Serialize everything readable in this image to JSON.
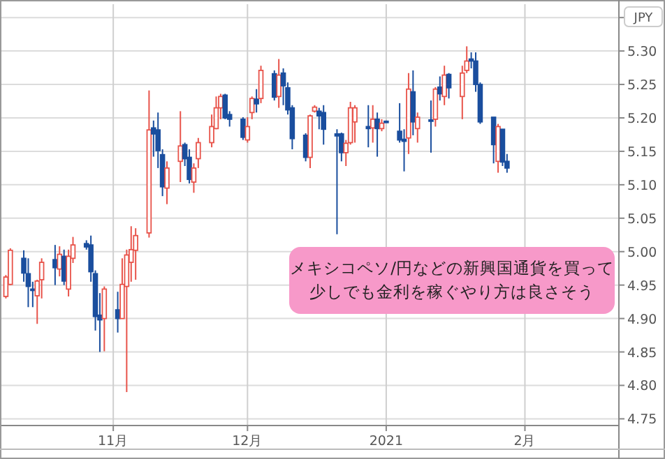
{
  "chart_data": {
    "type": "candlestick",
    "ylabel": "JPY",
    "x": [
      "2020-10-08",
      "2020-10-09",
      "2020-10-12",
      "2020-10-13",
      "2020-10-14",
      "2020-10-15",
      "2020-10-16",
      "2020-10-19",
      "2020-10-20",
      "2020-10-21",
      "2020-10-22",
      "2020-10-23",
      "2020-10-26",
      "2020-10-27",
      "2020-10-28",
      "2020-10-29",
      "2020-10-30",
      "2020-11-02",
      "2020-11-03",
      "2020-11-04",
      "2020-11-05",
      "2020-11-06",
      "2020-11-09",
      "2020-11-10",
      "2020-11-11",
      "2020-11-12",
      "2020-11-13",
      "2020-11-16",
      "2020-11-17",
      "2020-11-18",
      "2020-11-19",
      "2020-11-20",
      "2020-11-23",
      "2020-11-24",
      "2020-11-25",
      "2020-11-26",
      "2020-11-27",
      "2020-11-30",
      "2020-12-01",
      "2020-12-02",
      "2020-12-03",
      "2020-12-04",
      "2020-12-07",
      "2020-12-08",
      "2020-12-09",
      "2020-12-10",
      "2020-12-11",
      "2020-12-14",
      "2020-12-15",
      "2020-12-16",
      "2020-12-17",
      "2020-12-18",
      "2020-12-21",
      "2020-12-22",
      "2020-12-23",
      "2020-12-24",
      "2020-12-25",
      "2020-12-28",
      "2020-12-29",
      "2020-12-30",
      "2020-12-31",
      "2021-01-01",
      "2021-01-04",
      "2021-01-05",
      "2021-01-06",
      "2021-01-07",
      "2021-01-08",
      "2021-01-11",
      "2021-01-12",
      "2021-01-13",
      "2021-01-14",
      "2021-01-15",
      "2021-01-18",
      "2021-01-19",
      "2021-01-20",
      "2021-01-21",
      "2021-01-22",
      "2021-01-25",
      "2021-01-26",
      "2021-01-27",
      "2021-01-28"
    ],
    "ohlc": [
      [
        4.933,
        4.965,
        4.93,
        4.962
      ],
      [
        4.951,
        5.005,
        4.95,
        5.002
      ],
      [
        4.99,
        5.002,
        4.955,
        4.968
      ],
      [
        4.967,
        4.99,
        4.917,
        4.948
      ],
      [
        4.944,
        4.955,
        4.917,
        4.942
      ],
      [
        4.934,
        4.958,
        4.892,
        4.956
      ],
      [
        4.958,
        4.99,
        4.93,
        4.984
      ],
      [
        4.988,
        5.01,
        4.95,
        4.976
      ],
      [
        4.974,
        5.008,
        4.963,
        4.996
      ],
      [
        4.993,
        5.003,
        4.95,
        4.956
      ],
      [
        4.944,
        5.003,
        4.933,
        4.993
      ],
      [
        4.99,
        5.022,
        4.983,
        5.01
      ],
      [
        5.012,
        5.017,
        5.003,
        5.007
      ],
      [
        5.01,
        5.024,
        4.955,
        4.97
      ],
      [
        4.967,
        4.972,
        4.882,
        4.903
      ],
      [
        4.905,
        4.938,
        4.85,
        4.898
      ],
      [
        4.9,
        4.948,
        4.851,
        4.944
      ],
      [
        4.913,
        4.94,
        4.879,
        4.9
      ],
      [
        4.9,
        4.99,
        4.9,
        4.951
      ],
      [
        4.948,
        5.003,
        4.79,
        4.995
      ],
      [
        4.984,
        5.038,
        4.955,
        5.003
      ],
      [
        5.002,
        5.035,
        4.958,
        5.024
      ],
      [
        5.028,
        5.241,
        5.021,
        5.182
      ],
      [
        5.185,
        5.196,
        5.142,
        5.176
      ],
      [
        5.182,
        5.208,
        5.125,
        5.151
      ],
      [
        5.145,
        5.153,
        5.083,
        5.097
      ],
      [
        5.095,
        5.135,
        5.071,
        5.125
      ],
      [
        5.135,
        5.21,
        5.104,
        5.158
      ],
      [
        5.16,
        5.163,
        5.128,
        5.139
      ],
      [
        5.141,
        5.153,
        5.102,
        5.108
      ],
      [
        5.104,
        5.132,
        5.088,
        5.125
      ],
      [
        5.139,
        5.17,
        5.125,
        5.163
      ],
      [
        5.163,
        5.205,
        5.156,
        5.187
      ],
      [
        5.184,
        5.232,
        5.183,
        5.215
      ],
      [
        5.215,
        5.236,
        5.198,
        5.232
      ],
      [
        5.234,
        5.236,
        5.198,
        5.2
      ],
      [
        5.205,
        5.21,
        5.187,
        5.198
      ],
      [
        5.198,
        5.201,
        5.167,
        5.171
      ],
      [
        5.167,
        5.201,
        5.163,
        5.187
      ],
      [
        5.208,
        5.232,
        5.198,
        5.229
      ],
      [
        5.228,
        5.243,
        5.208,
        5.221
      ],
      [
        5.229,
        5.278,
        5.222,
        5.271
      ],
      [
        5.266,
        5.271,
        5.226,
        5.231
      ],
      [
        5.232,
        5.288,
        5.215,
        5.264
      ],
      [
        5.267,
        5.274,
        5.219,
        5.248
      ],
      [
        5.245,
        5.253,
        5.205,
        5.212
      ],
      [
        5.215,
        5.219,
        5.153,
        5.169
      ],
      [
        5.174,
        5.177,
        5.135,
        5.141
      ],
      [
        5.141,
        5.205,
        5.125,
        5.203
      ],
      [
        5.21,
        5.219,
        5.208,
        5.216
      ],
      [
        5.21,
        5.215,
        5.183,
        5.203
      ],
      [
        5.208,
        5.219,
        5.16,
        5.183
      ],
      [
        5.176,
        5.183,
        5.026,
        5.173
      ],
      [
        5.176,
        5.178,
        5.135,
        5.148
      ],
      [
        5.148,
        5.167,
        5.128,
        5.162
      ],
      [
        5.163,
        5.224,
        5.16,
        5.215
      ],
      [
        5.194,
        5.219,
        5.163,
        5.215
      ],
      [
        5.187,
        5.219,
        5.156,
        5.184
      ],
      [
        5.185,
        5.219,
        5.163,
        5.198
      ],
      [
        5.198,
        5.208,
        5.142,
        5.184
      ],
      [
        5.184,
        5.198,
        5.18,
        5.192
      ],
      [
        5.195,
        5.196,
        5.193,
        5.194
      ],
      [
        5.18,
        5.222,
        5.163,
        5.167
      ],
      [
        5.168,
        5.183,
        5.12,
        5.165
      ],
      [
        5.17,
        5.267,
        5.146,
        5.243
      ],
      [
        5.239,
        5.271,
        5.174,
        5.194
      ],
      [
        5.184,
        5.208,
        5.163,
        5.201
      ],
      [
        5.197,
        5.226,
        5.148,
        5.195
      ],
      [
        5.198,
        5.246,
        5.187,
        5.243
      ],
      [
        5.246,
        5.262,
        5.226,
        5.236
      ],
      [
        5.232,
        5.278,
        5.219,
        5.264
      ],
      [
        5.265,
        5.267,
        5.229,
        5.245
      ],
      [
        5.232,
        5.278,
        5.198,
        5.267
      ],
      [
        5.271,
        5.307,
        5.267,
        5.285
      ],
      [
        5.288,
        5.298,
        5.274,
        5.285
      ],
      [
        5.285,
        5.298,
        5.239,
        5.25
      ],
      [
        5.25,
        5.253,
        5.191,
        5.194
      ],
      [
        5.201,
        5.201,
        5.132,
        5.16
      ],
      [
        5.135,
        5.191,
        5.118,
        5.187
      ],
      [
        5.183,
        5.183,
        5.128,
        5.134
      ],
      [
        5.135,
        5.146,
        5.118,
        5.125
      ]
    ],
    "colors": [
      "#e8534a",
      "#e8534a",
      "#1a4e9e",
      "#1a4e9e",
      "#1a4e9e",
      "#e8534a",
      "#e8534a",
      "#1a4e9e",
      "#e8534a",
      "#1a4e9e",
      "#e8534a",
      "#e8534a",
      "#1a4e9e",
      "#1a4e9e",
      "#1a4e9e",
      "#1a4e9e",
      "#e8534a",
      "#1a4e9e",
      "#e8534a",
      "#e8534a",
      "#e8534a",
      "#e8534a",
      "#e8534a",
      "#1a4e9e",
      "#1a4e9e",
      "#1a4e9e",
      "#e8534a",
      "#e8534a",
      "#1a4e9e",
      "#1a4e9e",
      "#e8534a",
      "#e8534a",
      "#e8534a",
      "#e8534a",
      "#e8534a",
      "#1a4e9e",
      "#1a4e9e",
      "#1a4e9e",
      "#e8534a",
      "#e8534a",
      "#1a4e9e",
      "#e8534a",
      "#1a4e9e",
      "#e8534a",
      "#1a4e9e",
      "#1a4e9e",
      "#1a4e9e",
      "#1a4e9e",
      "#e8534a",
      "#e8534a",
      "#1a4e9e",
      "#1a4e9e",
      "#1a4e9e",
      "#1a4e9e",
      "#e8534a",
      "#e8534a",
      "#e8534a",
      "#1a4e9e",
      "#e8534a",
      "#1a4e9e",
      "#e8534a",
      "#1a4e9e",
      "#1a4e9e",
      "#1a4e9e",
      "#e8534a",
      "#1a4e9e",
      "#e8534a",
      "#1a4e9e",
      "#e8534a",
      "#1a4e9e",
      "#e8534a",
      "#1a4e9e",
      "#e8534a",
      "#e8534a",
      "#1a4e9e",
      "#1a4e9e",
      "#1a4e9e",
      "#1a4e9e",
      "#e8534a",
      "#1a4e9e",
      "#1a4e9e"
    ],
    "xlim": [
      "2020-10-07",
      "2021-02-22"
    ],
    "xticks": [
      {
        "value": "2020-11-01",
        "label": "11月"
      },
      {
        "value": "2020-12-01",
        "label": "12月"
      },
      {
        "value": "2021-01-01",
        "label": "2021"
      },
      {
        "value": "2021-02-01",
        "label": "2月"
      }
    ],
    "ylim": [
      4.74,
      5.37
    ],
    "yticks": [
      4.75,
      {
        "value": 4.8,
        "label": "4.80"
      },
      4.85,
      {
        "value": 4.9,
        "label": "4.90"
      },
      4.95,
      {
        "value": 5.0,
        "label": "5.00"
      },
      5.05,
      {
        "value": 5.1,
        "label": "5.10"
      },
      5.15,
      {
        "value": 5.2,
        "label": "5.20"
      },
      5.25,
      {
        "value": 5.3,
        "label": "5.30"
      },
      {
        "value": 5.35,
        "label": null
      }
    ],
    "grid": true,
    "annotations": [
      "メキシコペソ/円などの新興国通貨を買って",
      "少しでも金利を稼ぐやり方は良さそう"
    ]
  }
}
